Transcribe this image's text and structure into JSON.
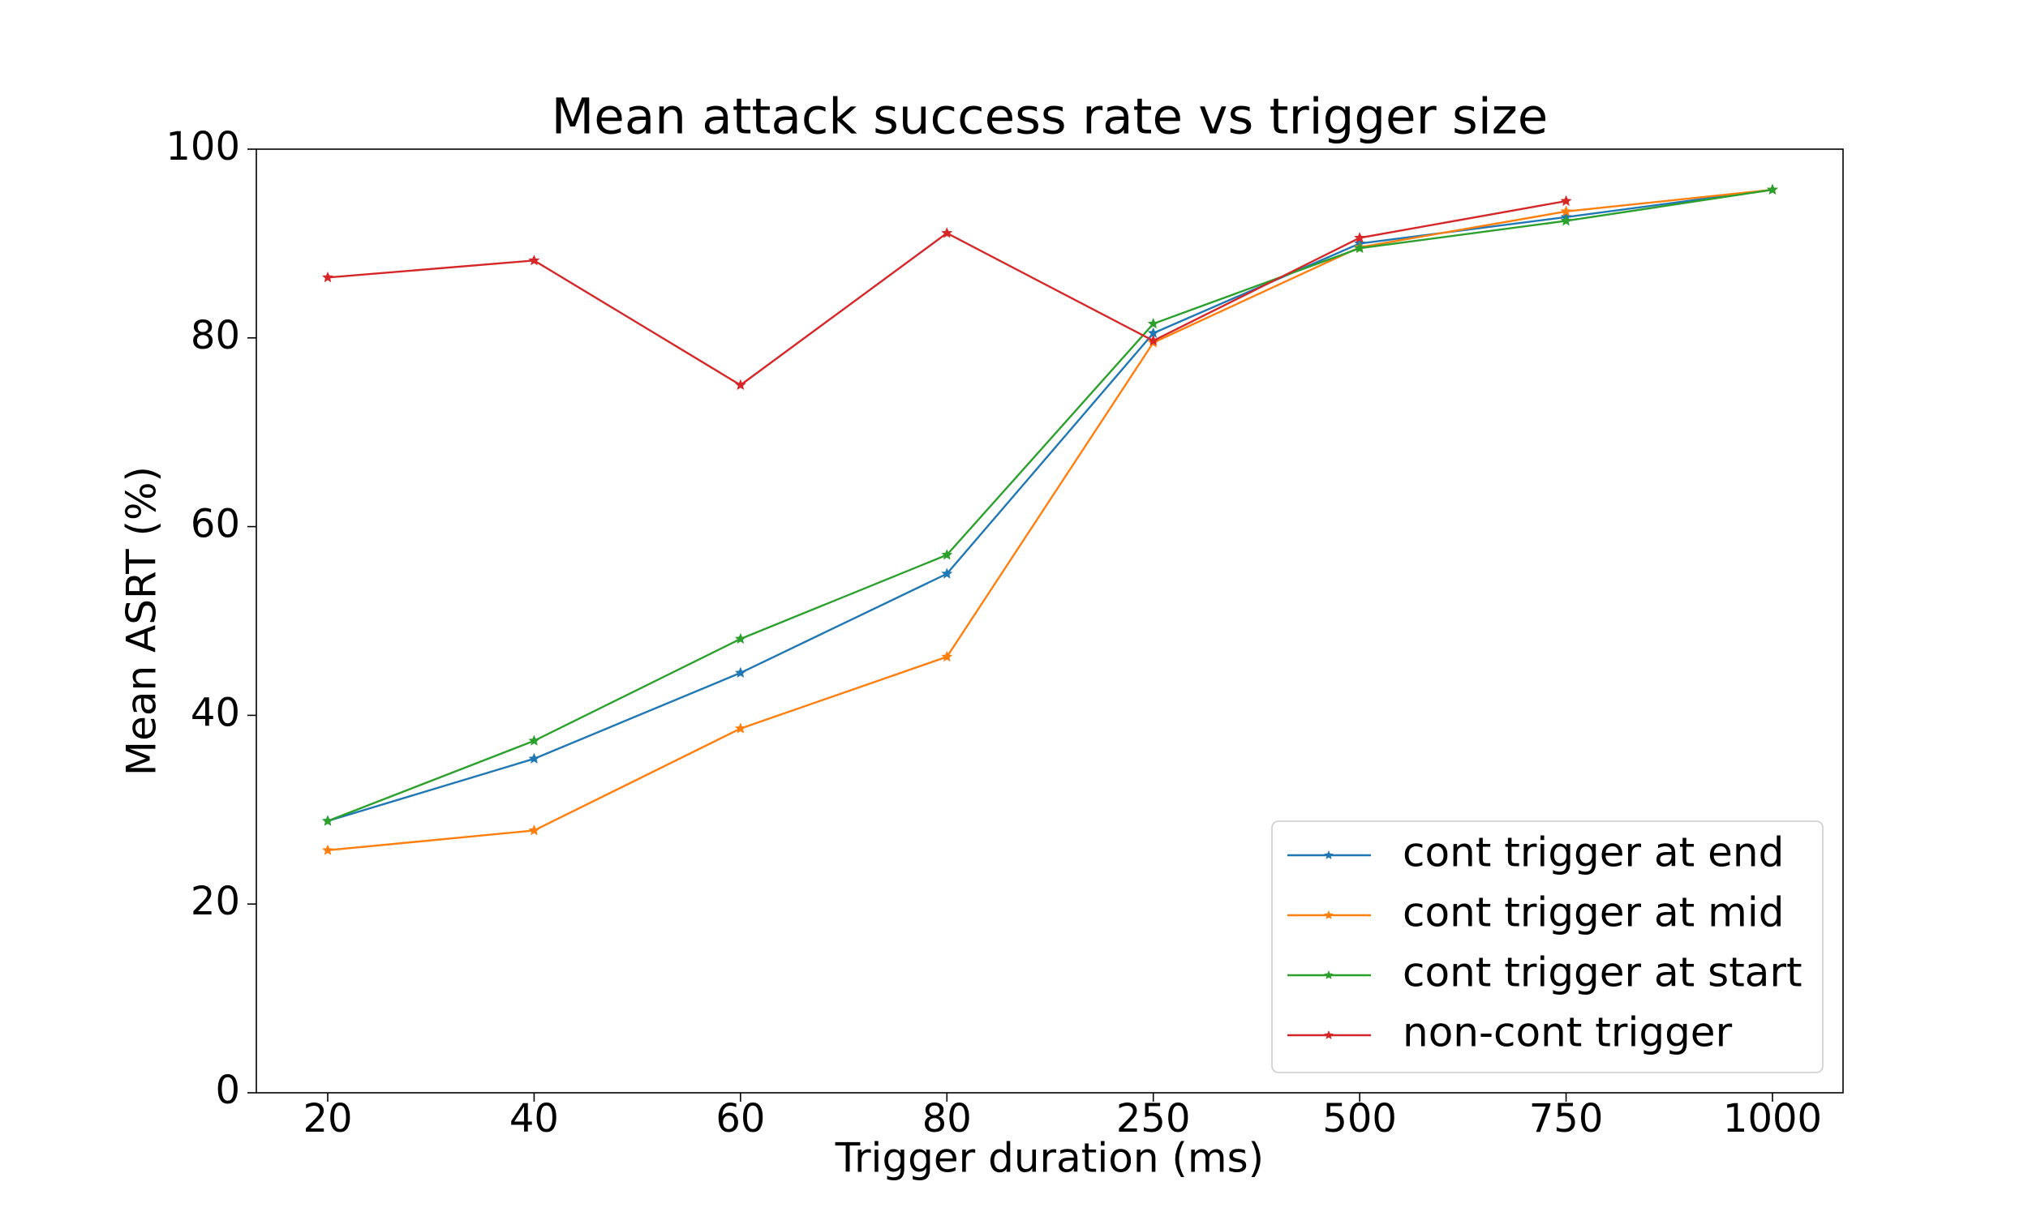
{
  "chart_data": {
    "type": "line",
    "title": "Mean attack success rate vs trigger size",
    "xlabel": "Trigger duration (ms)",
    "ylabel": "Mean ASRT (%)",
    "categories": [
      "20",
      "40",
      "60",
      "80",
      "250",
      "500",
      "750",
      "1000"
    ],
    "series": [
      {
        "name": "cont trigger at end",
        "color": "#1f77b4",
        "values": [
          28.8,
          35.4,
          44.5,
          55.0,
          80.5,
          90.0,
          92.8,
          95.7
        ]
      },
      {
        "name": "cont trigger at mid",
        "color": "#ff7f0e",
        "values": [
          25.7,
          27.8,
          38.6,
          46.2,
          79.5,
          89.6,
          93.4,
          95.7
        ]
      },
      {
        "name": "cont trigger at start",
        "color": "#2ca02c",
        "values": [
          28.8,
          37.3,
          48.1,
          57.0,
          81.5,
          89.5,
          92.4,
          95.7
        ]
      },
      {
        "name": "non-cont trigger",
        "color": "#d62728",
        "values": [
          86.4,
          88.2,
          75.0,
          91.1,
          79.7,
          90.6,
          94.5,
          null
        ]
      }
    ],
    "ylim": [
      0,
      100
    ],
    "yticks": [
      0,
      20,
      40,
      60,
      80,
      100
    ],
    "legend": "lower right"
  }
}
